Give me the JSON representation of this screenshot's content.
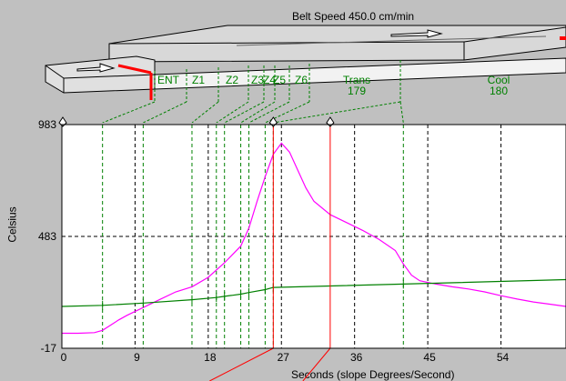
{
  "header": {
    "belt_speed": "Belt Speed 450.0 cm/min"
  },
  "zones": {
    "labels": [
      "ENT",
      "Z1",
      "Z2",
      "Z3",
      "Z4",
      "Z5",
      "Z6",
      "Trans",
      "Cool"
    ],
    "values": [
      "",
      "",
      "",
      "",
      "",
      "",
      "",
      "179",
      "180"
    ]
  },
  "colors": {
    "zone_green": "#008000",
    "profile_magenta": "#ff00ff",
    "cursor_red": "#ff0000",
    "background": "#c0c0c0"
  },
  "chart_data": {
    "type": "line",
    "xlabel": "Seconds (slope Degrees/Second)",
    "ylabel": "Celsius",
    "ylim": [
      -17,
      983
    ],
    "xlim": [
      0,
      62
    ],
    "y_ticks": [
      -17,
      483,
      983
    ],
    "x_ticks": [
      0,
      9,
      18,
      27,
      36,
      45,
      54
    ],
    "zone_boundaries_x": [
      5,
      10,
      16,
      19,
      20,
      22,
      23,
      25,
      26,
      42
    ],
    "cursors_x": [
      26,
      33
    ],
    "series": [
      {
        "name": "",
        "x": [
          0,
          2,
          4,
          5,
          7,
          8,
          10,
          12,
          14,
          16,
          18,
          20,
          22,
          23,
          24,
          25,
          26,
          27,
          28,
          29,
          30,
          31,
          33,
          35,
          37,
          39,
          41,
          42,
          43,
          44,
          46,
          48,
          50,
          52,
          54,
          56,
          58,
          60,
          62
        ],
        "y": [
          50,
          50,
          53,
          63,
          110,
          130,
          165,
          200,
          235,
          258,
          300,
          365,
          440,
          520,
          640,
          750,
          850,
          900,
          860,
          780,
          700,
          640,
          580,
          545,
          510,
          470,
          420,
          360,
          310,
          285,
          270,
          258,
          248,
          235,
          218,
          203,
          190,
          180,
          170
        ]
      },
      {
        "name": "",
        "x": [
          0,
          5,
          10,
          16,
          19,
          20,
          22,
          23,
          25,
          26,
          42,
          62
        ],
        "y": [
          170,
          175,
          185,
          200,
          210,
          215,
          225,
          232,
          245,
          255,
          270,
          290
        ]
      }
    ]
  }
}
